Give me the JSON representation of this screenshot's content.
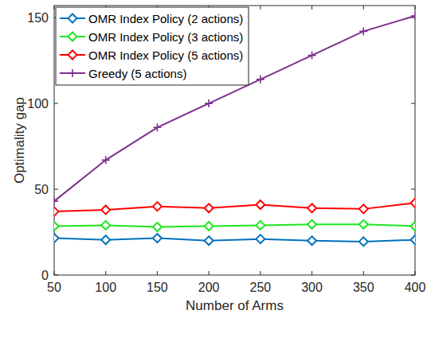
{
  "chart_data": {
    "type": "line",
    "x_label": "Number of Arms",
    "y_label": "Optimality gap",
    "x": [
      50,
      100,
      150,
      200,
      250,
      300,
      350,
      400
    ],
    "xlim": [
      50,
      400
    ],
    "xticks": [
      50,
      100,
      150,
      200,
      250,
      300,
      350,
      400
    ],
    "ylim": [
      0,
      157
    ],
    "yticks": [
      0,
      50,
      100,
      150
    ],
    "grid": false,
    "legend": "northwest",
    "series": [
      {
        "name": "OMR Index Policy (2 actions)",
        "color": "#0072bd",
        "marker": "diamond",
        "line_style": "solid",
        "values": [
          21.5,
          20.5,
          21.5,
          20,
          21,
          20,
          19.5,
          20.5
        ]
      },
      {
        "name": "OMR Index Policy (3 actions)",
        "color": "#1ee61e",
        "marker": "diamond",
        "line_style": "solid",
        "values": [
          28.5,
          29,
          28,
          28.5,
          29,
          29.5,
          29.5,
          28.5
        ]
      },
      {
        "name": "OMR Index Policy (5 actions)",
        "color": "#ff0000",
        "marker": "diamond",
        "line_style": "solid",
        "values": [
          37,
          38,
          40,
          39,
          41,
          39,
          38.5,
          42
        ]
      },
      {
        "name": "Greedy (5 actions)",
        "color": "#7e2f8e",
        "marker": "plus",
        "line_style": "solid",
        "values": [
          43,
          67,
          86,
          100,
          114,
          128,
          142,
          151
        ]
      }
    ]
  }
}
